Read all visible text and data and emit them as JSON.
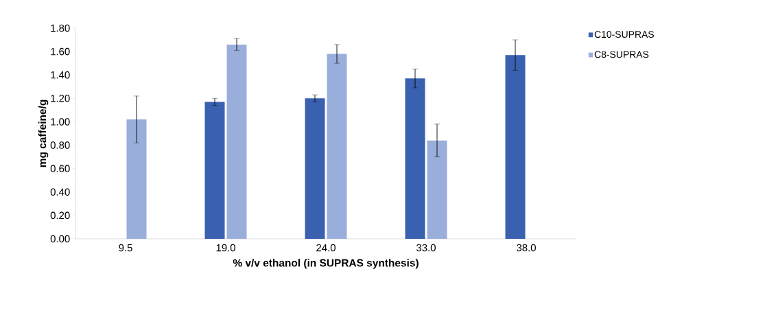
{
  "chart_data": {
    "type": "bar",
    "xlabel": "% v/v ethanol (in SUPRAS synthesis)",
    "ylabel": "mg caffeine/g",
    "categories": [
      "9.5",
      "19.0",
      "24.0",
      "33.0",
      "38.0"
    ],
    "series": [
      {
        "name": "C10-SUPRAS",
        "color": "#3a60b0",
        "values": [
          null,
          1.17,
          1.2,
          1.37,
          1.57
        ],
        "errors": [
          null,
          0.03,
          0.03,
          0.08,
          0.13
        ]
      },
      {
        "name": "C8-SUPRAS",
        "color": "#9aaedc",
        "values": [
          1.02,
          1.66,
          1.58,
          0.84,
          null
        ],
        "errors": [
          0.2,
          0.05,
          0.08,
          0.14,
          null
        ]
      }
    ],
    "ylim": [
      0,
      1.8
    ],
    "yticks": [
      {
        "value": 0,
        "label": "0.00"
      },
      {
        "value": 0.2,
        "label": "0.20"
      },
      {
        "value": 0.4,
        "label": "0.40"
      },
      {
        "value": 0.6,
        "label": "0.60"
      },
      {
        "value": 0.8,
        "label": "0.80"
      },
      {
        "value": 1.0,
        "label": "1.00"
      },
      {
        "value": 1.2,
        "label": "1.20"
      },
      {
        "value": 1.4,
        "label": "1.40"
      },
      {
        "value": 1.6,
        "label": "1.60"
      },
      {
        "value": 1.8,
        "label": "1.80"
      }
    ],
    "grid": false,
    "legend": "top right"
  }
}
